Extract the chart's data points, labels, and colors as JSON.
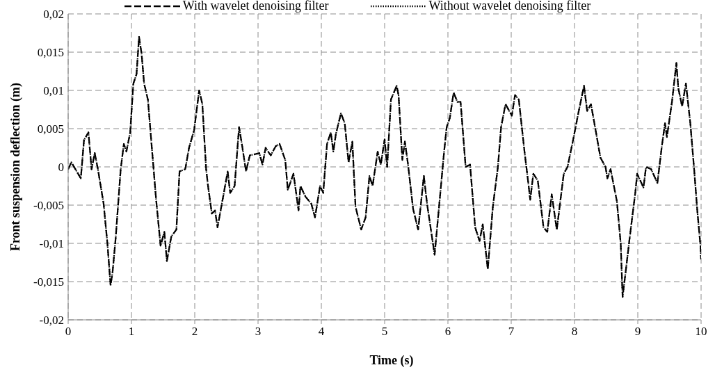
{
  "chart_data": {
    "type": "line",
    "xlabel": "Time (s)",
    "ylabel": "Front suspension deflection (m)",
    "xlim": [
      0,
      10
    ],
    "xticks": [
      0,
      1,
      2,
      3,
      4,
      5,
      6,
      7,
      8,
      9,
      10
    ],
    "ylim": [
      -0.02,
      0.02
    ],
    "yticks": [
      {
        "value": -0.02,
        "label": "-0,02"
      },
      {
        "value": -0.015,
        "label": "-0,015"
      },
      {
        "value": -0.01,
        "label": "-0,01"
      },
      {
        "value": -0.005,
        "label": "-0,005"
      },
      {
        "value": 0,
        "label": "0"
      },
      {
        "value": 0.005,
        "label": "0,005"
      },
      {
        "value": 0.01,
        "label": "0,01"
      },
      {
        "value": 0.015,
        "label": "0,015"
      },
      {
        "value": 0.02,
        "label": "0,02"
      }
    ],
    "grid": true,
    "legend": "top",
    "marker": "none",
    "x": [
      0,
      0.05,
      0.2,
      0.25,
      0.32,
      0.37,
      0.42,
      0.47,
      0.56,
      0.62,
      0.67,
      0.7,
      0.75,
      0.83,
      0.88,
      0.92,
      0.98,
      1.03,
      1.08,
      1.12,
      1.16,
      1.2,
      1.26,
      1.32,
      1.39,
      1.46,
      1.52,
      1.56,
      1.63,
      1.71,
      1.76,
      1.85,
      1.91,
      1.99,
      2.07,
      2.12,
      2.18,
      2.21,
      2.27,
      2.32,
      2.36,
      2.46,
      2.52,
      2.56,
      2.63,
      2.7,
      2.75,
      2.81,
      2.87,
      3.02,
      3.07,
      3.12,
      3.2,
      3.28,
      3.34,
      3.43,
      3.47,
      3.56,
      3.64,
      3.67,
      3.75,
      3.84,
      3.9,
      3.98,
      4.03,
      4.09,
      4.15,
      4.19,
      4.23,
      4.31,
      4.37,
      4.43,
      4.49,
      4.54,
      4.63,
      4.7,
      4.76,
      4.81,
      4.89,
      4.94,
      5.0,
      5.04,
      5.1,
      5.19,
      5.22,
      5.28,
      5.32,
      5.37,
      5.45,
      5.53,
      5.62,
      5.67,
      5.79,
      5.87,
      5.94,
      5.98,
      6.03,
      6.09,
      6.15,
      6.2,
      6.28,
      6.35,
      6.43,
      6.5,
      6.55,
      6.63,
      6.71,
      6.79,
      6.84,
      6.91,
      7.01,
      7.06,
      7.12,
      7.21,
      7.27,
      7.3,
      7.35,
      7.42,
      7.51,
      7.57,
      7.64,
      7.72,
      7.83,
      7.89,
      7.98,
      8.06,
      8.15,
      8.2,
      8.26,
      8.34,
      8.41,
      8.49,
      8.52,
      8.57,
      8.67,
      8.73,
      8.76,
      8.81,
      8.87,
      8.96,
      8.99,
      9.09,
      9.13,
      9.21,
      9.31,
      9.38,
      9.43,
      9.46,
      9.54,
      9.61,
      9.64,
      9.7,
      9.76,
      9.83,
      9.89,
      9.94,
      9.99,
      10.0
    ],
    "series": [
      {
        "name": "With wavelet denoising filter",
        "color": "#000000",
        "line_style": "dashed",
        "values": [
          -0.0003,
          0.0006,
          -0.0015,
          0.0035,
          0.0045,
          -0.0003,
          0.0018,
          -0.0003,
          -0.0048,
          -0.01,
          -0.0155,
          -0.0139,
          -0.0094,
          -0.0003,
          0.003,
          0.002,
          0.0045,
          0.0109,
          0.0121,
          0.017,
          0.0148,
          0.0109,
          0.0088,
          0.0027,
          -0.0043,
          -0.0103,
          -0.0085,
          -0.0123,
          -0.0091,
          -0.0082,
          -0.0006,
          -0.0003,
          0.0025,
          0.0048,
          0.01,
          0.0082,
          -0.0003,
          -0.0025,
          -0.0061,
          -0.0057,
          -0.0079,
          -0.0034,
          -0.0006,
          -0.0034,
          -0.0025,
          0.0052,
          0.0027,
          -0.0006,
          0.0015,
          0.0018,
          0.0003,
          0.0025,
          0.0015,
          0.0027,
          0.003,
          0.0009,
          -0.003,
          -0.0009,
          -0.0057,
          -0.0025,
          -0.0039,
          -0.0048,
          -0.0066,
          -0.0025,
          -0.0034,
          0.003,
          0.0045,
          0.002,
          0.0043,
          0.007,
          0.0057,
          0.0006,
          0.0033,
          -0.0052,
          -0.0082,
          -0.0066,
          -0.0012,
          -0.0025,
          0.002,
          0.0003,
          0.0036,
          0.0,
          0.0088,
          0.0106,
          0.0094,
          0.0009,
          0.0033,
          0.0003,
          -0.0055,
          -0.0082,
          -0.0012,
          -0.0048,
          -0.0115,
          -0.0043,
          0.002,
          0.0052,
          0.0064,
          0.0097,
          0.0085,
          0.0085,
          0.0,
          0.0003,
          -0.0079,
          -0.0097,
          -0.0075,
          -0.0134,
          -0.0052,
          0.0,
          0.0052,
          0.0082,
          0.0067,
          0.0094,
          0.0088,
          0.002,
          -0.0021,
          -0.0043,
          -0.0009,
          -0.0018,
          -0.0079,
          -0.0085,
          -0.0036,
          -0.0082,
          -0.0009,
          0.0,
          0.0036,
          0.007,
          0.0106,
          0.0073,
          0.0082,
          0.0045,
          0.0012,
          0.0,
          -0.0015,
          -0.0003,
          -0.0045,
          -0.01,
          -0.017,
          -0.0136,
          -0.0094,
          -0.0034,
          -0.0009,
          -0.0027,
          0.0,
          -0.0003,
          -0.0021,
          0.0027,
          0.0057,
          0.0039,
          0.0085,
          0.0136,
          0.0103,
          0.0079,
          0.0109,
          0.0057,
          -0.0003,
          -0.0057,
          -0.0103,
          -0.0121
        ]
      },
      {
        "name": "Without wavelet denoising filter",
        "color": "#000000",
        "line_style": "dotted",
        "values": [
          -0.0003,
          0.0006,
          -0.0015,
          0.0035,
          0.0045,
          -0.0003,
          0.0018,
          -0.0003,
          -0.0048,
          -0.01,
          -0.0155,
          -0.0139,
          -0.0094,
          -0.0003,
          0.003,
          0.002,
          0.0045,
          0.0109,
          0.0121,
          0.017,
          0.0148,
          0.0109,
          0.0088,
          0.0027,
          -0.0043,
          -0.0103,
          -0.0085,
          -0.0123,
          -0.0091,
          -0.0082,
          -0.0006,
          -0.0003,
          0.0025,
          0.0048,
          0.01,
          0.0082,
          -0.0003,
          -0.0025,
          -0.0061,
          -0.0057,
          -0.0079,
          -0.0034,
          -0.0006,
          -0.0034,
          -0.0025,
          0.0052,
          0.0027,
          -0.0006,
          0.0015,
          0.0018,
          0.0003,
          0.0025,
          0.0015,
          0.0027,
          0.003,
          0.0009,
          -0.003,
          -0.0009,
          -0.0057,
          -0.0025,
          -0.0039,
          -0.0048,
          -0.0066,
          -0.0025,
          -0.0034,
          0.003,
          0.0045,
          0.002,
          0.0043,
          0.007,
          0.0057,
          0.0006,
          0.0033,
          -0.0052,
          -0.0082,
          -0.0066,
          -0.0012,
          -0.0025,
          0.002,
          0.0003,
          0.0036,
          0.0,
          0.0088,
          0.0106,
          0.0094,
          0.0009,
          0.0033,
          0.0003,
          -0.0055,
          -0.0082,
          -0.0012,
          -0.0048,
          -0.0115,
          -0.0043,
          0.002,
          0.0052,
          0.0064,
          0.0097,
          0.0085,
          0.0085,
          0.0,
          0.0003,
          -0.0079,
          -0.0097,
          -0.0075,
          -0.0134,
          -0.0052,
          0.0,
          0.0052,
          0.0082,
          0.0067,
          0.0094,
          0.0088,
          0.002,
          -0.0021,
          -0.0043,
          -0.0009,
          -0.0018,
          -0.0079,
          -0.0085,
          -0.0036,
          -0.0082,
          -0.0009,
          0.0,
          0.0036,
          0.007,
          0.0106,
          0.0073,
          0.0082,
          0.0045,
          0.0012,
          0.0,
          -0.0015,
          -0.0003,
          -0.0045,
          -0.01,
          -0.017,
          -0.0136,
          -0.0094,
          -0.0034,
          -0.0009,
          -0.0027,
          0.0,
          -0.0003,
          -0.0021,
          0.0027,
          0.0057,
          0.0039,
          0.0085,
          0.0136,
          0.0103,
          0.0079,
          0.0109,
          0.0057,
          -0.0003,
          -0.0057,
          -0.0103,
          -0.0121
        ]
      }
    ]
  }
}
